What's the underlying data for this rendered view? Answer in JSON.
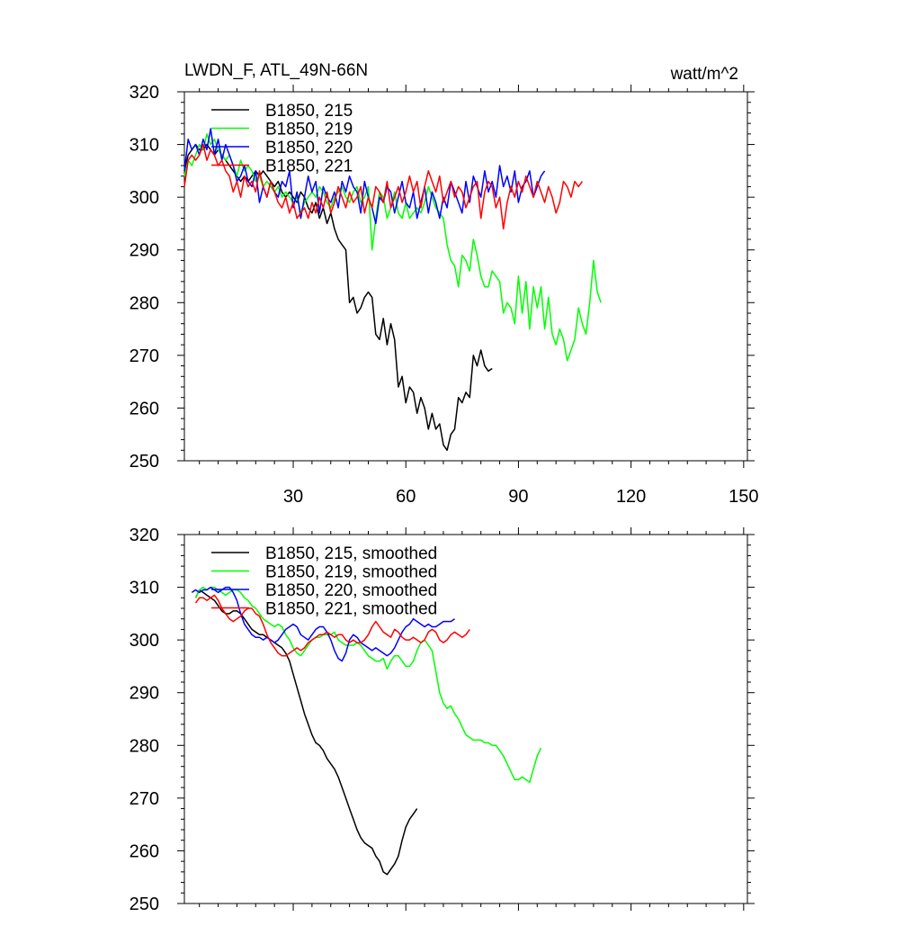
{
  "colors": {
    "black": "#000000",
    "green": "#00ff00",
    "blue": "#0000ff",
    "red": "#ff0000"
  },
  "chart_data": [
    {
      "type": "line",
      "title": "LWDN_F, ATL_49N-66N",
      "units": "watt/m^2",
      "xlim": [
        1,
        151
      ],
      "ylim": [
        250,
        320
      ],
      "yticks": [
        250,
        260,
        270,
        280,
        290,
        300,
        310,
        320
      ],
      "xticks": [
        30,
        60,
        90,
        120,
        150
      ],
      "xtick_labels": [
        "30",
        "60",
        "90",
        "120",
        "150"
      ],
      "show_xtick_labels": true,
      "legend": "top-left",
      "series": [
        {
          "name": "B1850, 215",
          "color": "#000000",
          "x_start": 1,
          "values": [
            305,
            308,
            309,
            310,
            309,
            309,
            310,
            309,
            308,
            309,
            308,
            307,
            306,
            305,
            304,
            303,
            304,
            303,
            304,
            305,
            304,
            305,
            304,
            303,
            302,
            303,
            301,
            300,
            301,
            300,
            299,
            301,
            300,
            298,
            297,
            299,
            296,
            298,
            295,
            297,
            294,
            292,
            291,
            290,
            280,
            281,
            278,
            279,
            281,
            282,
            281,
            274,
            273,
            277,
            272,
            276,
            273,
            264,
            266,
            261,
            264,
            263,
            259,
            262,
            260,
            256,
            259,
            256,
            257,
            253,
            252,
            255,
            256,
            262,
            261,
            263,
            262,
            270,
            268,
            271,
            268,
            267,
            267.5
          ]
        },
        {
          "name": "B1850, 219",
          "color": "#00ff00",
          "x_start": 1,
          "values": [
            304,
            307,
            306,
            308,
            310,
            309,
            312,
            310,
            311,
            309,
            308,
            307,
            308,
            306,
            304,
            307,
            305,
            306,
            305,
            303,
            304,
            302,
            303,
            302,
            301,
            302,
            300,
            301,
            300,
            299,
            300,
            297,
            299,
            300,
            301,
            300,
            302,
            301,
            299,
            298,
            300,
            301,
            302,
            300,
            299,
            301,
            302,
            299,
            300,
            302,
            290,
            296,
            301,
            300,
            296,
            298,
            301,
            297,
            296,
            299,
            296,
            297,
            298,
            297,
            299,
            302,
            300,
            298,
            297,
            296,
            291,
            288,
            287,
            283,
            289,
            288,
            286,
            292,
            289,
            285,
            283,
            283,
            286,
            285,
            284,
            278,
            280,
            279,
            276,
            285,
            278,
            284,
            275,
            283,
            279,
            283,
            275,
            281,
            274,
            272,
            275,
            273,
            269,
            271,
            273,
            279,
            276,
            274,
            280,
            288,
            282,
            280
          ]
        },
        {
          "name": "B1850, 220",
          "color": "#0000ff",
          "x_start": 1,
          "values": [
            305,
            311,
            309,
            310,
            308,
            311,
            309,
            313,
            308,
            311,
            307,
            310,
            308,
            306,
            303,
            304,
            306,
            303,
            302,
            305,
            299,
            302,
            300,
            303,
            301,
            300,
            303,
            302,
            305,
            298,
            301,
            296,
            300,
            304,
            301,
            303,
            297,
            302,
            300,
            299,
            301,
            298,
            303,
            301,
            304,
            302,
            301,
            297,
            303,
            300,
            298,
            295,
            300,
            299,
            302,
            301,
            297,
            300,
            303,
            299,
            298,
            301,
            296,
            299,
            302,
            297,
            301,
            299,
            296,
            300,
            298,
            303,
            301,
            299,
            297,
            303,
            299,
            304,
            302,
            300,
            305,
            301,
            303,
            300,
            306,
            302,
            304,
            301,
            305,
            299,
            302,
            303,
            305,
            300,
            302,
            304,
            305
          ]
        },
        {
          "name": "B1850, 221",
          "color": "#ff0000",
          "x_start": 1,
          "values": [
            302,
            307,
            308,
            307,
            308,
            310,
            307,
            309,
            308,
            306,
            307,
            305,
            304,
            301,
            303,
            300,
            304,
            302,
            303,
            301,
            305,
            302,
            300,
            303,
            301,
            299,
            298,
            300,
            297,
            299,
            296,
            297,
            298,
            296,
            299,
            297,
            300,
            298,
            301,
            297,
            299,
            302,
            300,
            298,
            301,
            299,
            300,
            302,
            297,
            300,
            298,
            302,
            301,
            299,
            303,
            298,
            300,
            302,
            299,
            301,
            304,
            301,
            303,
            298,
            302,
            305,
            303,
            301,
            304,
            299,
            301,
            303,
            300,
            302,
            301,
            298,
            300,
            302,
            303,
            296,
            301,
            303,
            302,
            298,
            300,
            294,
            299,
            302,
            300,
            303,
            301,
            304,
            302,
            300,
            303,
            301,
            299,
            302,
            300,
            297,
            299,
            303,
            302,
            300,
            303,
            302,
            303
          ]
        }
      ]
    },
    {
      "type": "line",
      "title": "",
      "units": "",
      "xlim": [
        1,
        151
      ],
      "ylim": [
        250,
        320
      ],
      "yticks": [
        250,
        260,
        270,
        280,
        290,
        300,
        310,
        320
      ],
      "xticks": [
        30,
        60,
        90,
        120,
        150
      ],
      "xtick_labels": [],
      "show_xtick_labels": false,
      "legend": "top-left",
      "series": [
        {
          "name": "B1850, 215, smoothed",
          "color": "#000000",
          "x_start": 4,
          "values": [
            308,
            309.5,
            309,
            308.5,
            308,
            307.5,
            306.5,
            305.5,
            305,
            305,
            305.5,
            305.5,
            305,
            304,
            303,
            302,
            301.5,
            301,
            301,
            300.5,
            300,
            299.5,
            299,
            298.5,
            297.5,
            296,
            293.5,
            291,
            288.5,
            286,
            284,
            282,
            280.5,
            280,
            279,
            277.5,
            276.5,
            275.5,
            274,
            272,
            270,
            268,
            266,
            264,
            262.5,
            261.5,
            261,
            260.5,
            259,
            258,
            256,
            255.5,
            256.5,
            257.5,
            259,
            262,
            264.5,
            266,
            267,
            268
          ]
        },
        {
          "name": "B1850, 219, smoothed",
          "color": "#00ff00",
          "x_start": 4,
          "values": [
            308,
            309.5,
            310,
            309.5,
            310,
            310,
            309.5,
            309,
            308.5,
            309,
            309.5,
            309.5,
            309,
            308,
            307.5,
            306.5,
            306,
            305,
            304,
            303.5,
            303,
            302.5,
            303,
            302.5,
            301,
            300,
            298.5,
            297.5,
            297,
            298,
            299,
            300,
            300.5,
            300.5,
            301,
            301,
            301,
            301.5,
            300,
            299.5,
            299,
            299,
            299,
            299.5,
            299,
            298,
            297,
            296.5,
            296,
            296,
            296.5,
            294.5,
            296,
            297,
            297,
            296,
            295,
            295,
            296,
            298,
            299.5,
            300,
            299,
            298,
            294,
            290,
            288,
            287,
            287.5,
            286,
            285,
            283.5,
            282,
            281.5,
            281,
            281,
            281,
            280.5,
            280.5,
            280,
            280,
            279,
            278,
            276.5,
            275,
            273.5,
            273.5,
            274,
            273.5,
            273,
            275.5,
            278,
            279.5
          ]
        },
        {
          "name": "B1850, 220, smoothed",
          "color": "#0000ff",
          "x_start": 3,
          "values": [
            309,
            309.5,
            309,
            309.5,
            309.5,
            310,
            309.5,
            309,
            309.5,
            310,
            310,
            309,
            307.5,
            305,
            303,
            302,
            301,
            300.5,
            300.5,
            300,
            300.5,
            300,
            299.5,
            300,
            301,
            302,
            302.5,
            303,
            302.5,
            301,
            300.5,
            300,
            301,
            302,
            302.5,
            302.5,
            301.5,
            300,
            298,
            296.5,
            296,
            297.5,
            300,
            301,
            300.5,
            299.5,
            299,
            298.5,
            298,
            298.5,
            298,
            297.5,
            297,
            297.5,
            298.5,
            300,
            301.5,
            302.5,
            303,
            304,
            303.5,
            303,
            302.5,
            303,
            302.5,
            302.5,
            303,
            303.5,
            303.5,
            303.5,
            304
          ]
        },
        {
          "name": "B1850, 221, smoothed",
          "color": "#ff0000",
          "x_start": 4,
          "values": [
            307,
            308,
            308,
            307.5,
            308,
            308.5,
            307.5,
            306,
            305,
            304,
            303.5,
            304,
            304.5,
            305.5,
            306,
            306,
            305,
            304.5,
            303,
            301,
            299.5,
            298.5,
            297.5,
            297,
            297,
            297.5,
            298,
            298.5,
            298,
            298.5,
            299.5,
            300,
            300.5,
            301,
            301,
            301.5,
            301,
            300.5,
            301,
            301,
            300,
            299.5,
            300,
            299.5,
            299.5,
            300,
            301,
            302.5,
            303.5,
            302.5,
            301.5,
            301,
            300.5,
            302,
            301.5,
            300.5,
            300,
            300,
            300.5,
            300,
            299.5,
            300,
            301.5,
            302,
            301.5,
            300,
            299.5,
            300,
            301,
            301.5,
            301,
            300.5,
            301,
            302
          ]
        }
      ]
    }
  ]
}
